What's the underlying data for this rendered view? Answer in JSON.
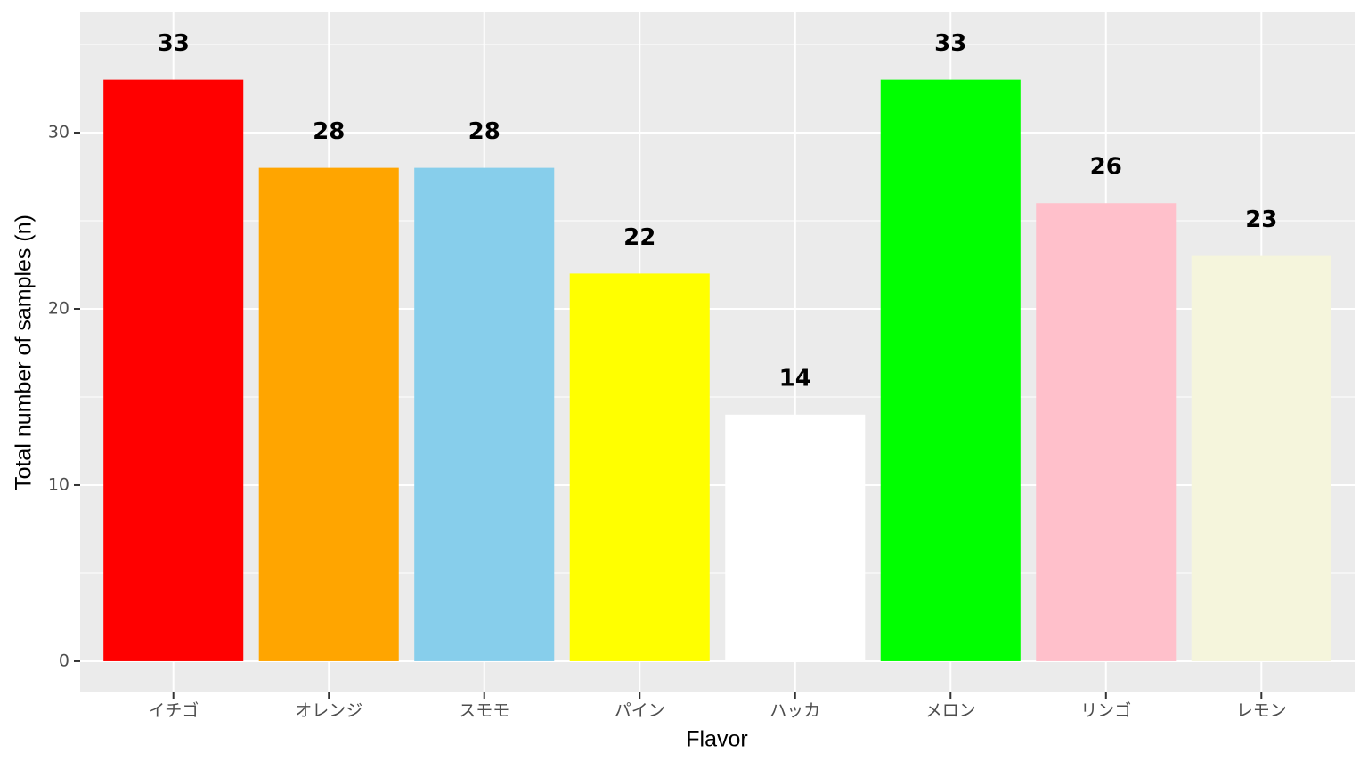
{
  "chart_data": {
    "type": "bar",
    "x_label": "Flavor",
    "y_label": "Total number of samples (n)",
    "categories": [
      "イチゴ",
      "オレンジ",
      "スモモ",
      "パイン",
      "ハッカ",
      "メロン",
      "リンゴ",
      "レモン"
    ],
    "values": [
      33,
      28,
      28,
      22,
      14,
      33,
      26,
      23
    ],
    "colors": [
      "#ff0000",
      "#ffa500",
      "#87ceeb",
      "#ffff00",
      "#ffffff",
      "#00ff00",
      "#ffc0cb",
      "#f5f5dc"
    ],
    "ylim": [
      -1.77,
      36.82
    ],
    "yticks": [
      0,
      10,
      20,
      30
    ],
    "minor_yticks": [
      5,
      15,
      25,
      35
    ],
    "grid": true
  }
}
